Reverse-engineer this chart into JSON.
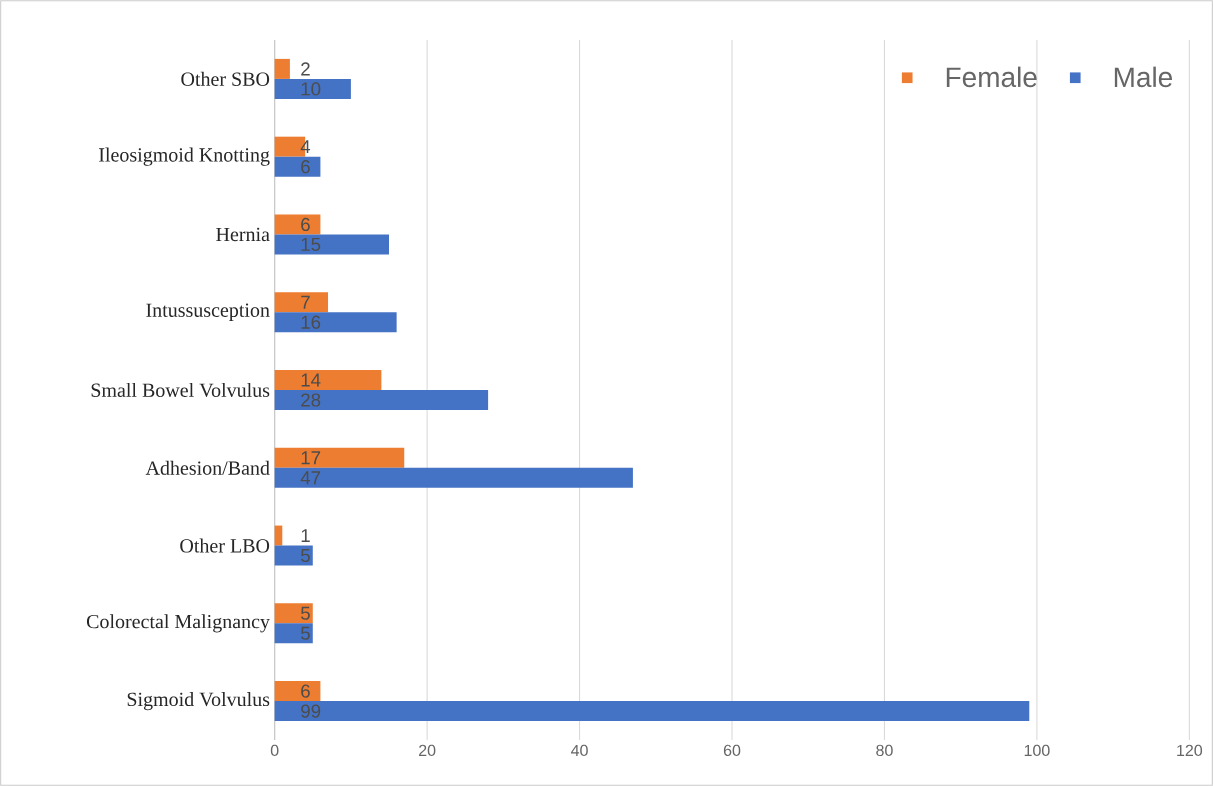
{
  "chart_data": {
    "type": "bar",
    "orientation": "horizontal",
    "categories": [
      "Other SBO",
      "Ileosigmoid Knotting",
      "Hernia",
      "Intussusception",
      "Small  Bowel Volvulus",
      "Adhesion/Band",
      "Other LBO",
      "Colorectal Malignancy",
      "Sigmoid Volvulus"
    ],
    "series": [
      {
        "name": "Female",
        "color": "#ed7d31",
        "values": [
          2,
          4,
          6,
          7,
          14,
          17,
          1,
          5,
          6
        ]
      },
      {
        "name": "Male",
        "color": "#4472c4",
        "values": [
          10,
          6,
          15,
          16,
          28,
          47,
          5,
          5,
          99
        ]
      }
    ],
    "xlim": [
      0,
      120
    ],
    "xticks": [
      0,
      20,
      40,
      60,
      80,
      100,
      120
    ],
    "grid": "x",
    "legend": "top right",
    "data_labels": true
  }
}
